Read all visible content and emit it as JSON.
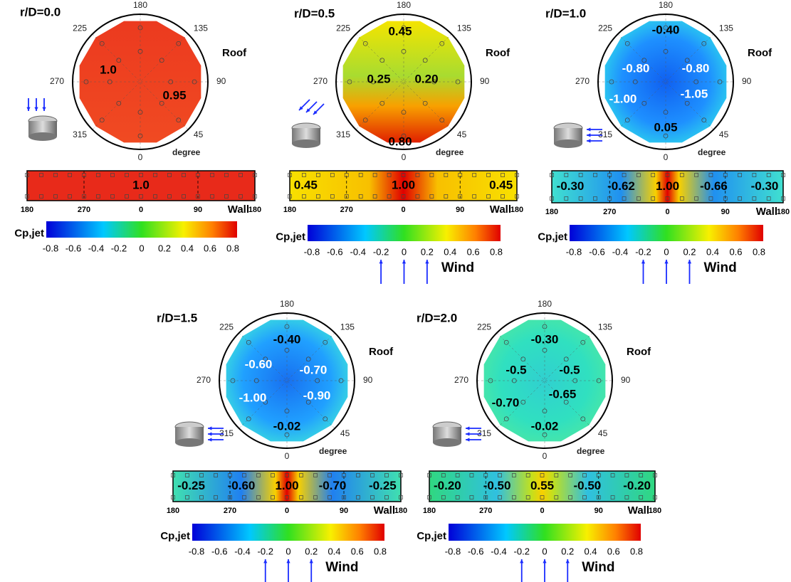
{
  "panels": [
    {
      "title": "r/D=0.0",
      "roof_label": "Roof",
      "angles": [
        "180",
        "135",
        "90",
        "45",
        "0",
        "315",
        "270",
        "225"
      ],
      "degree_label": "degree",
      "roof_values": [
        "1.0",
        "0.95"
      ],
      "wall_values": [
        "1.0"
      ],
      "wall_ticks": [
        "180",
        "270",
        "0",
        "90",
        "180"
      ],
      "wall_label": "Wall",
      "colorbar_label": "Cp,jet",
      "colorbar_ticks": [
        -0.8,
        -0.6,
        -0.4,
        -0.2,
        0,
        0.2,
        0.4,
        0.6,
        0.8
      ]
    },
    {
      "title": "r/D=0.5",
      "roof_label": "Roof",
      "angles": [
        "180",
        "135",
        "90",
        "45",
        "0",
        "315",
        "270",
        "225"
      ],
      "degree_label": "degree",
      "roof_values": [
        "0.45",
        "0.25",
        "0.20",
        "0.80"
      ],
      "wall_values": [
        "0.45",
        "1.00",
        "0.45"
      ],
      "wall_ticks": [
        "180",
        "270",
        "0",
        "90",
        "180"
      ],
      "wall_label": "Wall",
      "colorbar_label": "Cp,jet",
      "colorbar_ticks": [
        -0.8,
        -0.6,
        -0.4,
        -0.2,
        0,
        0.2,
        0.4,
        0.6,
        0.8
      ],
      "wind_label": "Wind"
    },
    {
      "title": "r/D=1.0",
      "roof_label": "Roof",
      "angles": [
        "180",
        "135",
        "90",
        "45",
        "0",
        "315",
        "270",
        "225"
      ],
      "degree_label": "degree",
      "roof_values": [
        "-0.40",
        "-0.80",
        "-0.80",
        "-1.00",
        "-1.05",
        "0.05"
      ],
      "wall_values": [
        "-0.30",
        "-0.62",
        "1.00",
        "-0.66",
        "-0.30"
      ],
      "wall_ticks": [
        "180",
        "270",
        "0",
        "90",
        "180"
      ],
      "wall_label": "Wall",
      "colorbar_label": "Cp,jet",
      "colorbar_ticks": [
        -0.8,
        -0.6,
        -0.4,
        -0.2,
        0,
        0.2,
        0.4,
        0.6,
        0.8
      ],
      "wind_label": "Wind"
    },
    {
      "title": "r/D=1.5",
      "roof_label": "Roof",
      "angles": [
        "180",
        "135",
        "90",
        "45",
        "0",
        "315",
        "270",
        "225"
      ],
      "degree_label": "degree",
      "roof_values": [
        "-0.40",
        "-0.60",
        "-0.70",
        "-1.00",
        "-0.90",
        "-0.02"
      ],
      "wall_values": [
        "-0.25",
        "-0.60",
        "1.00",
        "-0.70",
        "-0.25"
      ],
      "wall_ticks": [
        "180",
        "270",
        "0",
        "90",
        "180"
      ],
      "wall_label": "Wall",
      "colorbar_label": "Cp,jet",
      "colorbar_ticks": [
        -0.8,
        -0.6,
        -0.4,
        -0.2,
        0,
        0.2,
        0.4,
        0.6,
        0.8
      ],
      "wind_label": "Wind"
    },
    {
      "title": "r/D=2.0",
      "roof_label": "Roof",
      "angles": [
        "180",
        "135",
        "90",
        "45",
        "0",
        "315",
        "270",
        "225"
      ],
      "degree_label": "degree",
      "roof_values": [
        "-0.30",
        "-0.5",
        "-0.5",
        "-0.70",
        "-0.65",
        "-0.02"
      ],
      "wall_values": [
        "-0.20",
        "-0.50",
        "0.55",
        "-0.50",
        "-0.20"
      ],
      "wall_ticks": [
        "180",
        "270",
        "0",
        "90",
        "180"
      ],
      "wall_label": "Wall",
      "colorbar_label": "Cp,jet",
      "colorbar_ticks": [
        -0.8,
        -0.6,
        -0.4,
        -0.2,
        0,
        0.2,
        0.4,
        0.6,
        0.8
      ],
      "wind_label": "Wind"
    }
  ]
}
